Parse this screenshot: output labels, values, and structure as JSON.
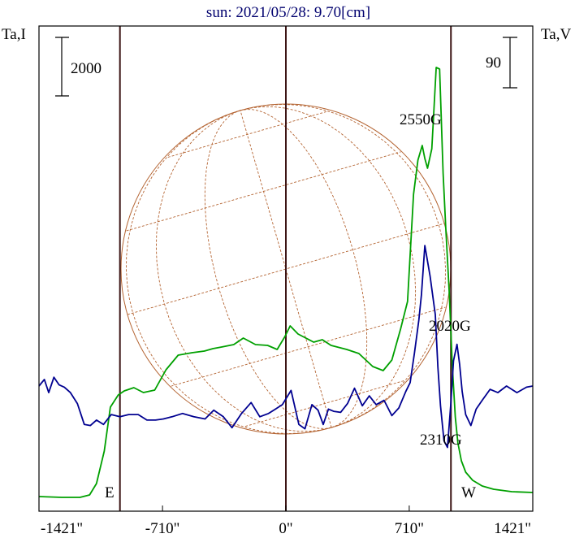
{
  "header": {
    "title": "sun: 2021/05/28: 9.70[cm]",
    "left_axis_label": "Ta,I",
    "right_axis_label": "Ta,V"
  },
  "scale_bars": {
    "left": "2000",
    "right": "90"
  },
  "annotations": {
    "east": "E",
    "west": "W",
    "peak_high": "2550G",
    "peak_mid": "2020G",
    "peak_low": "2310G"
  },
  "colors": {
    "intensity": "#00a000",
    "polarization": "#000090",
    "disk": "#b46432",
    "marker_lines": "#3c1414",
    "title": "#00006e"
  },
  "chart_data": {
    "type": "line",
    "title": "sun: 2021/05/28: 9.70[cm]",
    "xlabel": "",
    "ylabel": "Ta,I",
    "y2label": "Ta,V",
    "x_ticks": [
      "-1421\"",
      "-710\"",
      "0\"",
      "710\"",
      "1421\""
    ],
    "xlim": [
      -1421,
      1421
    ],
    "grid": false,
    "series": [
      {
        "name": "Ta,I",
        "color": "#00a000",
        "x": [
          -1421,
          -1290,
          -1185,
          -1130,
          -1090,
          -1045,
          -1010,
          -965,
          -930,
          -875,
          -820,
          -755,
          -690,
          -620,
          -540,
          -470,
          -420,
          -370,
          -300,
          -245,
          -175,
          -105,
          -50,
          -5,
          25,
          70,
          115,
          160,
          210,
          260,
          350,
          420,
          500,
          560,
          610,
          660,
          700,
          735,
          760,
          785,
          800,
          815,
          840,
          865,
          885,
          905,
          920,
          940,
          958,
          975,
          990,
          1010,
          1035,
          1075,
          1130,
          1195,
          1300,
          1421
        ],
        "values": [
          -680,
          -685,
          -685,
          -670,
          -600,
          -400,
          -130,
          -55,
          -30,
          -10,
          -40,
          -25,
          100,
          190,
          205,
          215,
          230,
          240,
          255,
          295,
          255,
          250,
          225,
          305,
          370,
          320,
          295,
          270,
          285,
          250,
          225,
          200,
          120,
          95,
          160,
          350,
          520,
          1180,
          1390,
          1480,
          1400,
          1340,
          1460,
          1960,
          1950,
          1310,
          980,
          580,
          130,
          -190,
          -350,
          -460,
          -530,
          -580,
          -615,
          -635,
          -650,
          -655
        ]
      },
      {
        "name": "Ta,V",
        "color": "#000090",
        "x": [
          -1421,
          -1390,
          -1365,
          -1335,
          -1305,
          -1275,
          -1240,
          -1200,
          -1160,
          -1125,
          -1090,
          -1050,
          -1005,
          -955,
          -905,
          -850,
          -800,
          -750,
          -705,
          -655,
          -595,
          -530,
          -465,
          -415,
          -360,
          -310,
          -255,
          -200,
          -150,
          -100,
          -60,
          -20,
          30,
          75,
          110,
          150,
          185,
          215,
          245,
          275,
          315,
          355,
          395,
          440,
          480,
          520,
          565,
          610,
          650,
          690,
          715,
          740,
          765,
          780,
          800,
          830,
          860,
          875,
          890,
          910,
          930,
          950,
          965,
          985,
          1000,
          1015,
          1035,
          1065,
          1095,
          1130,
          1175,
          1220,
          1270,
          1330,
          1385,
          1421
        ],
        "values": [
          0,
          6,
          -6,
          8,
          1,
          -1,
          -6,
          -16,
          -35,
          -36,
          -31,
          -35,
          -26,
          -28,
          -26,
          -26,
          -31,
          -31,
          -30,
          -28,
          -25,
          -28,
          -30,
          -22,
          -28,
          -38,
          -25,
          -15,
          -28,
          -25,
          -21,
          -17,
          -4,
          -35,
          -39,
          -17,
          -22,
          -35,
          -21,
          -23,
          -24,
          -16,
          -2,
          -18,
          -9,
          -17,
          -13,
          -27,
          -20,
          -5,
          3,
          30,
          60,
          83,
          128,
          100,
          65,
          17,
          -18,
          -50,
          -56,
          -15,
          23,
          38,
          20,
          -5,
          -26,
          -36,
          -21,
          -13,
          -3,
          -6,
          0,
          -6,
          -1,
          0
        ]
      }
    ],
    "annotations": [
      {
        "text": "2550G",
        "x": 890
      },
      {
        "text": "2020G",
        "x": 990
      },
      {
        "text": "2310G",
        "x": 910
      }
    ],
    "reference_lines": [
      -955,
      0,
      950
    ]
  }
}
